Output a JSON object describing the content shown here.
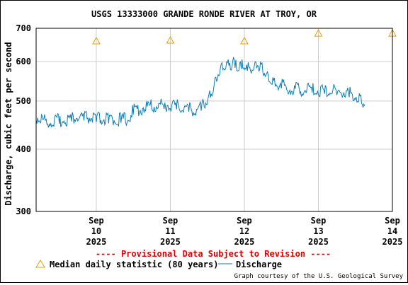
{
  "chart_data": {
    "type": "line",
    "title": "USGS 13333000 GRANDE RONDE RIVER AT TROY, OR",
    "ylabel": "Discharge, cubic feet per second",
    "xlabel": "",
    "y_scale": "log",
    "ylim": [
      300,
      700
    ],
    "y_ticks": [
      {
        "value": 300,
        "label": "300"
      },
      {
        "value": 400,
        "label": "400"
      },
      {
        "value": 500,
        "label": "500"
      },
      {
        "value": 600,
        "label": "600"
      },
      {
        "value": 700,
        "label": "700"
      }
    ],
    "xlim": [
      "2025-09-09T16:30",
      "2025-09-14T12:00"
    ],
    "x_ticks": [
      {
        "value": "2025-09-10T12:00",
        "label": [
          "Sep",
          "10",
          "2025"
        ]
      },
      {
        "value": "2025-09-11T12:00",
        "label": [
          "Sep",
          "11",
          "2025"
        ]
      },
      {
        "value": "2025-09-12T12:00",
        "label": [
          "Sep",
          "12",
          "2025"
        ]
      },
      {
        "value": "2025-09-13T12:00",
        "label": [
          "Sep",
          "13",
          "2025"
        ]
      },
      {
        "value": "2025-09-14T12:00",
        "label": [
          "Sep",
          "14",
          "2025"
        ]
      }
    ],
    "grid": true,
    "series": [
      {
        "name": "Discharge",
        "color": "#0a7fb5",
        "points": [
          [
            "2025-09-09T16:30",
            458
          ],
          [
            "2025-09-09T18:00",
            452
          ],
          [
            "2025-09-09T20:00",
            449
          ],
          [
            "2025-09-09T22:00",
            447
          ],
          [
            "2025-09-10T00:00",
            450
          ],
          [
            "2025-09-10T02:00",
            452
          ],
          [
            "2025-09-10T04:00",
            455
          ],
          [
            "2025-09-10T06:00",
            456
          ],
          [
            "2025-09-10T08:00",
            457
          ],
          [
            "2025-09-10T10:00",
            455
          ],
          [
            "2025-09-10T12:00",
            453
          ],
          [
            "2025-09-10T14:00",
            452
          ],
          [
            "2025-09-10T16:00",
            451
          ],
          [
            "2025-09-10T18:00",
            452
          ],
          [
            "2025-09-10T20:00",
            452
          ],
          [
            "2025-09-10T22:00",
            453
          ],
          [
            "2025-09-11T00:00",
            470
          ],
          [
            "2025-09-11T02:00",
            475
          ],
          [
            "2025-09-11T04:00",
            478
          ],
          [
            "2025-09-11T06:00",
            480
          ],
          [
            "2025-09-11T08:00",
            483
          ],
          [
            "2025-09-11T10:00",
            482
          ],
          [
            "2025-09-11T12:00",
            483
          ],
          [
            "2025-09-11T14:00",
            481
          ],
          [
            "2025-09-11T16:00",
            478
          ],
          [
            "2025-09-11T18:00",
            476
          ],
          [
            "2025-09-11T20:00",
            472
          ],
          [
            "2025-09-11T22:00",
            478
          ],
          [
            "2025-09-11T23:00",
            487
          ],
          [
            "2025-09-12T00:00",
            493
          ],
          [
            "2025-09-12T01:00",
            508
          ],
          [
            "2025-09-12T02:00",
            526
          ],
          [
            "2025-09-12T03:00",
            548
          ],
          [
            "2025-09-12T04:00",
            566
          ],
          [
            "2025-09-12T05:00",
            578
          ],
          [
            "2025-09-12T06:00",
            583
          ],
          [
            "2025-09-12T07:00",
            589
          ],
          [
            "2025-09-12T08:00",
            585
          ],
          [
            "2025-09-12T09:00",
            583
          ],
          [
            "2025-09-12T10:00",
            575
          ],
          [
            "2025-09-12T11:00",
            580
          ],
          [
            "2025-09-12T12:00",
            578
          ],
          [
            "2025-09-12T13:00",
            575
          ],
          [
            "2025-09-12T14:00",
            575
          ],
          [
            "2025-09-12T15:00",
            578
          ],
          [
            "2025-09-12T16:00",
            582
          ],
          [
            "2025-09-12T17:00",
            580
          ],
          [
            "2025-09-12T18:00",
            571
          ],
          [
            "2025-09-12T19:00",
            563
          ],
          [
            "2025-09-12T20:00",
            547
          ],
          [
            "2025-09-12T21:00",
            540
          ],
          [
            "2025-09-12T22:00",
            535
          ],
          [
            "2025-09-13T00:00",
            530
          ],
          [
            "2025-09-13T02:00",
            524
          ],
          [
            "2025-09-13T04:00",
            520
          ],
          [
            "2025-09-13T06:00",
            518
          ],
          [
            "2025-09-13T08:00",
            520
          ],
          [
            "2025-09-13T10:00",
            520
          ],
          [
            "2025-09-13T12:00",
            516
          ],
          [
            "2025-09-13T14:00",
            517
          ],
          [
            "2025-09-13T16:00",
            516
          ],
          [
            "2025-09-13T18:00",
            514
          ],
          [
            "2025-09-13T20:00",
            513
          ],
          [
            "2025-09-13T22:00",
            509
          ],
          [
            "2025-09-14T00:00",
            504
          ],
          [
            "2025-09-14T01:00",
            498
          ],
          [
            "2025-09-14T02:00",
            495
          ],
          [
            "2025-09-14T03:00",
            489
          ]
        ]
      }
    ],
    "median_daily_statistic": {
      "name": "Median daily statistic (80 years)",
      "color": "#e8a000",
      "points": [
        [
          "2025-09-10T12:00",
          660
        ],
        [
          "2025-09-11T12:00",
          662
        ],
        [
          "2025-09-12T12:00",
          660
        ],
        [
          "2025-09-13T12:00",
          684
        ],
        [
          "2025-09-14T12:00",
          684
        ]
      ]
    },
    "legend_position": "bottom"
  },
  "provisional_notice": "---- Provisional Data Subject to Revision ----",
  "legend": {
    "median_label": "Median daily statistic (80 years)",
    "discharge_label": "Discharge"
  },
  "credit": "Graph courtesy of the U.S. Geological Survey"
}
